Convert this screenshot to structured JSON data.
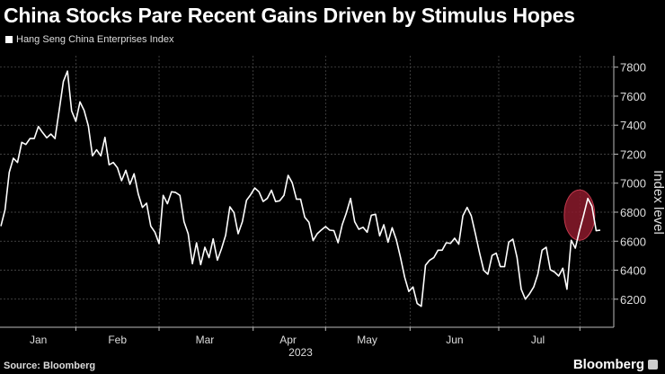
{
  "title": "China Stocks Pare Recent Gains Driven by Stimulus Hopes",
  "footer": {
    "source": "Source: Bloomberg",
    "brand": "Bloomberg"
  },
  "chart_data": {
    "type": "line",
    "title": "China Stocks Pare Recent Gains Driven by Stimulus Hopes",
    "legend": [
      "Hang Seng China Enterprises Index"
    ],
    "legend_position": "top-left",
    "xlabel": "2023",
    "ylabel": "Index level",
    "ylim": [
      6050,
      7900
    ],
    "yticks": [
      6200,
      6400,
      6600,
      6800,
      7000,
      7200,
      7400,
      7600,
      7800
    ],
    "month_labels": [
      {
        "label": "Jan",
        "x": 9
      },
      {
        "label": "Feb",
        "x": 28
      },
      {
        "label": "Mar",
        "x": 49
      },
      {
        "label": "Apr",
        "x": 69
      },
      {
        "label": "May",
        "x": 88
      },
      {
        "label": "Jun",
        "x": 109
      },
      {
        "label": "Jul",
        "x": 129
      }
    ],
    "month_boundaries": [
      18,
      38,
      60.6,
      78,
      98.3,
      119.6,
      139.1
    ],
    "year_x": 72,
    "grid": true,
    "line_color": "#ffffff",
    "highlight": {
      "x": 139,
      "value": 6780,
      "color": "#8b1a2b"
    },
    "series": [
      {
        "name": "Hang Seng China Enterprises Index",
        "values": [
          6703,
          6817,
          7075,
          7172,
          7143,
          7282,
          7267,
          7308,
          7308,
          7391,
          7350,
          7313,
          7339,
          7308,
          7499,
          7701,
          7773,
          7499,
          7426,
          7561,
          7502,
          7395,
          7189,
          7230,
          7189,
          7316,
          7127,
          7143,
          7106,
          7017,
          7089,
          6992,
          7065,
          6924,
          6833,
          6862,
          6703,
          6662,
          6583,
          6916,
          6858,
          6941,
          6936,
          6916,
          6734,
          6651,
          6445,
          6589,
          6438,
          6558,
          6486,
          6616,
          6469,
          6548,
          6641,
          6837,
          6796,
          6651,
          6734,
          6882,
          6920,
          6967,
          6941,
          6874,
          6895,
          6951,
          6873,
          6879,
          6916,
          7054,
          7003,
          6889,
          6889,
          6765,
          6730,
          6604,
          6651,
          6678,
          6701,
          6676,
          6672,
          6589,
          6713,
          6796,
          6895,
          6734,
          6682,
          6696,
          6662,
          6779,
          6786,
          6637,
          6713,
          6593,
          6693,
          6610,
          6486,
          6352,
          6253,
          6284,
          6170,
          6151,
          6434,
          6469,
          6486,
          6538,
          6538,
          6589,
          6585,
          6620,
          6579,
          6775,
          6833,
          6775,
          6651,
          6517,
          6399,
          6372,
          6502,
          6517,
          6424,
          6424,
          6593,
          6614,
          6486,
          6269,
          6200,
          6238,
          6284,
          6372,
          6538,
          6558,
          6403,
          6388,
          6360,
          6414,
          6269,
          6606,
          6552,
          6672,
          6780,
          6895,
          6841,
          6672,
          6676
        ]
      }
    ]
  }
}
